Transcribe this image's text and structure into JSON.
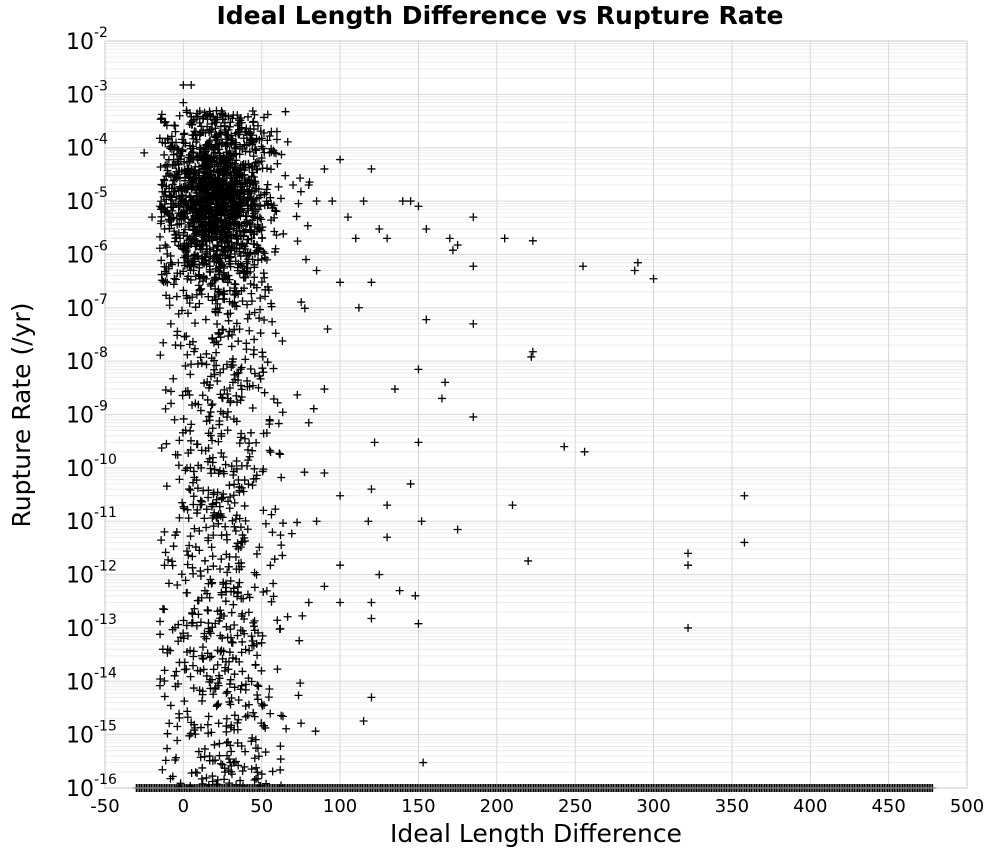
{
  "chart_data": {
    "type": "scatter",
    "title": "Ideal Length Difference vs Rupture Rate",
    "xlabel": "Ideal Length Difference",
    "ylabel": "Rupture Rate (/yr)",
    "xlim": [
      -50,
      500
    ],
    "ylim": [
      1e-16,
      0.01
    ],
    "yscale": "log",
    "grid": true,
    "marker": "plus",
    "x_ticks": [
      "-50",
      "0",
      "50",
      "100",
      "150",
      "200",
      "250",
      "300",
      "350",
      "400",
      "450",
      "500"
    ],
    "y_ticks": [
      {
        "base": "10",
        "exp": "-2"
      },
      {
        "base": "10",
        "exp": "-3"
      },
      {
        "base": "10",
        "exp": "-4"
      },
      {
        "base": "10",
        "exp": "-5"
      },
      {
        "base": "10",
        "exp": "-6"
      },
      {
        "base": "10",
        "exp": "-7"
      },
      {
        "base": "10",
        "exp": "-8"
      },
      {
        "base": "10",
        "exp": "-9"
      },
      {
        "base": "10",
        "exp": "-10"
      },
      {
        "base": "10",
        "exp": "-11"
      },
      {
        "base": "10",
        "exp": "-12"
      },
      {
        "base": "10",
        "exp": "-13"
      },
      {
        "base": "10",
        "exp": "-14"
      },
      {
        "base": "10",
        "exp": "-15"
      },
      {
        "base": "10",
        "exp": "-16"
      }
    ],
    "point_color": "#000000",
    "series": [
      {
        "points": [
          [
            -25,
            8e-05
          ],
          [
            -20,
            5e-06
          ],
          [
            -8,
            5e-08
          ],
          [
            -5,
            2e-08
          ],
          [
            -10,
            4e-14
          ],
          [
            -5,
            8e-15
          ],
          [
            0,
            0.0015
          ],
          [
            5,
            0.0015
          ],
          [
            0,
            0.0007
          ],
          [
            2,
            0.0005
          ],
          [
            -15,
            0.00015
          ],
          [
            -10,
            0.00015
          ],
          [
            -5,
            0.0002
          ],
          [
            5,
            0.0003
          ],
          [
            -8,
            3e-05
          ],
          [
            -12,
            1.5e-05
          ],
          [
            -15,
            8e-06
          ],
          [
            -12,
            3e-06
          ],
          [
            -10,
            6e-06
          ],
          [
            -5,
            2e-06
          ],
          [
            -8,
            9e-06
          ],
          [
            -3,
            5e-05
          ],
          [
            8,
            0.0002
          ],
          [
            20,
            0.0003
          ],
          [
            30,
            0.0003
          ],
          [
            40,
            0.0002
          ],
          [
            50,
            0.00015
          ],
          [
            55,
            8e-05
          ],
          [
            60,
            5e-05
          ],
          [
            65,
            3e-05
          ],
          [
            70,
            2e-05
          ],
          [
            75,
            1.5e-05
          ],
          [
            80,
            2e-05
          ],
          [
            85,
            1e-05
          ],
          [
            90,
            4e-05
          ],
          [
            95,
            1e-05
          ],
          [
            100,
            6e-05
          ],
          [
            105,
            5e-06
          ],
          [
            110,
            2e-06
          ],
          [
            115,
            1e-05
          ],
          [
            120,
            4e-05
          ],
          [
            125,
            3e-06
          ],
          [
            130,
            2e-06
          ],
          [
            140,
            1e-05
          ],
          [
            145,
            1e-05
          ],
          [
            150,
            8e-06
          ],
          [
            155,
            3e-06
          ],
          [
            170,
            2e-06
          ],
          [
            172,
            1.2e-06
          ],
          [
            175,
            1.5e-06
          ],
          [
            185,
            5e-06
          ],
          [
            185,
            6e-07
          ],
          [
            205,
            2e-06
          ],
          [
            223,
            1.8e-06
          ],
          [
            255,
            6e-07
          ],
          [
            288,
            5e-07
          ],
          [
            290,
            7e-07
          ],
          [
            300,
            3.5e-07
          ],
          [
            112,
            1e-07
          ],
          [
            120,
            3e-07
          ],
          [
            100,
            3e-07
          ],
          [
            85,
            5e-07
          ],
          [
            155,
            6e-08
          ],
          [
            185,
            5e-08
          ],
          [
            92,
            4e-08
          ],
          [
            222,
            1.2e-08
          ],
          [
            223,
            1.5e-08
          ],
          [
            150,
            7e-09
          ],
          [
            167,
            4e-09
          ],
          [
            135,
            3e-09
          ],
          [
            165,
            2e-09
          ],
          [
            185,
            9e-10
          ],
          [
            90,
            3e-09
          ],
          [
            80,
            7e-10
          ],
          [
            122,
            3e-10
          ],
          [
            150,
            3e-10
          ],
          [
            243,
            2.5e-10
          ],
          [
            256,
            2e-10
          ],
          [
            145,
            5e-11
          ],
          [
            120,
            4e-11
          ],
          [
            100,
            3e-11
          ],
          [
            90,
            8e-11
          ],
          [
            130,
            2e-11
          ],
          [
            152,
            1e-11
          ],
          [
            175,
            7e-12
          ],
          [
            210,
            2e-11
          ],
          [
            118,
            1e-11
          ],
          [
            358,
            3e-11
          ],
          [
            358,
            4e-12
          ],
          [
            130,
            5e-12
          ],
          [
            85,
            1e-11
          ],
          [
            322,
            2.5e-12
          ],
          [
            322,
            1.5e-12
          ],
          [
            220,
            1.8e-12
          ],
          [
            100,
            1.5e-12
          ],
          [
            125,
            1e-12
          ],
          [
            138,
            5e-13
          ],
          [
            148,
            4e-13
          ],
          [
            90,
            6e-13
          ],
          [
            80,
            3e-13
          ],
          [
            100,
            3e-13
          ],
          [
            120,
            3e-13
          ],
          [
            322,
            1e-13
          ],
          [
            120,
            1.5e-13
          ],
          [
            150,
            1.2e-13
          ],
          [
            120,
            5e-15
          ],
          [
            115,
            1.8e-15
          ],
          [
            153,
            3e-16
          ]
        ]
      }
    ],
    "dense_cluster": {
      "x_range": [
        -15,
        85
      ],
      "y_range_log10": [
        -16.0,
        -3.3
      ],
      "core_center": [
        20,
        1e-05
      ],
      "approx_points": 2400
    },
    "floor_points": {
      "y": 1e-16,
      "x_range": [
        -30,
        478
      ],
      "approx_points": 480
    }
  }
}
